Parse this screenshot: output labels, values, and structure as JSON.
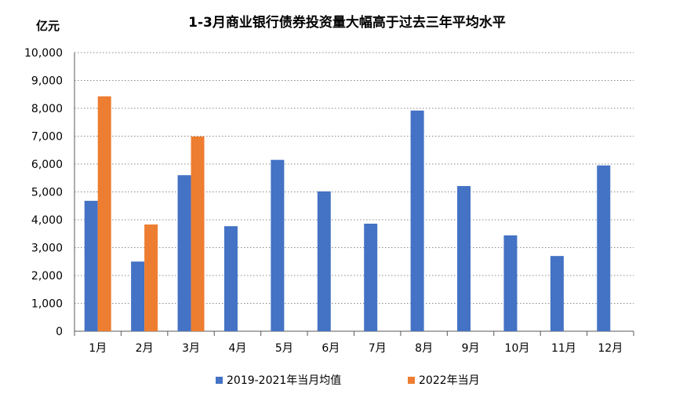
{
  "chart_data": {
    "type": "bar",
    "title": "1-3月商业银行债券投资量大幅高于过去三年平均水平",
    "ylabel": "亿元",
    "xlabel": "",
    "categories": [
      "1月",
      "2月",
      "3月",
      "4月",
      "5月",
      "6月",
      "7月",
      "8月",
      "9月",
      "10月",
      "11月",
      "12月"
    ],
    "ylim": [
      0,
      10000
    ],
    "yticks": [
      0,
      1000,
      2000,
      3000,
      4000,
      5000,
      6000,
      7000,
      8000,
      9000,
      10000
    ],
    "ytick_labels": [
      "0",
      "1,000",
      "2,000",
      "3,000",
      "4,000",
      "5,000",
      "6,000",
      "7,000",
      "8,000",
      "9,000",
      "10,000"
    ],
    "grid": true,
    "legend_position": "bottom",
    "series": [
      {
        "name": "2019-2021年当月均值",
        "color": "#4472C4",
        "values": [
          4680,
          2500,
          5600,
          3770,
          6150,
          5020,
          3860,
          7920,
          5210,
          3440,
          2700,
          5950
        ]
      },
      {
        "name": "2022年当月",
        "color": "#ED7D31",
        "values": [
          8430,
          3830,
          6990,
          null,
          null,
          null,
          null,
          null,
          null,
          null,
          null,
          null
        ]
      }
    ]
  }
}
